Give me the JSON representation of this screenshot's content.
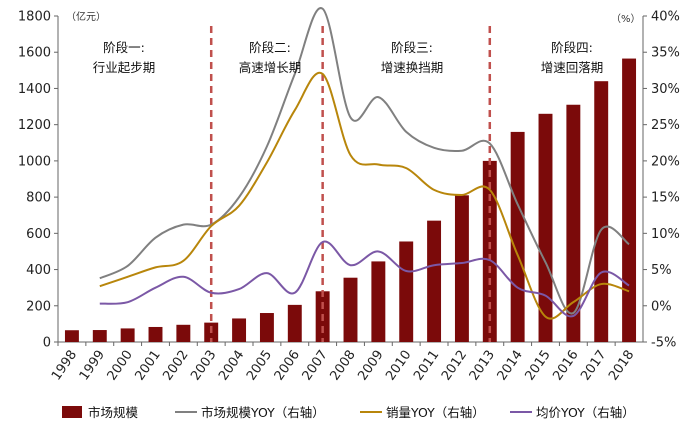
{
  "chart_data": {
    "type": "bar",
    "x": [
      "1998",
      "1999",
      "2000",
      "2001",
      "2002",
      "2003",
      "2004",
      "2005",
      "2006",
      "2007",
      "2008",
      "2009",
      "2010",
      "2011",
      "2012",
      "2013",
      "2014",
      "2015",
      "2016",
      "2017",
      "2018"
    ],
    "left_unit": "（亿元）",
    "right_unit": "（%）",
    "ylim_left": [
      0,
      1800
    ],
    "yticks_left": [
      0,
      200,
      400,
      600,
      800,
      1000,
      1200,
      1400,
      1600,
      1800
    ],
    "ylim_right": [
      -5,
      40
    ],
    "yticks_right": [
      "-5%",
      "0%",
      "5%",
      "10%",
      "15%",
      "20%",
      "25%",
      "30%",
      "35%",
      "40%"
    ],
    "colors": {
      "bars": "#7b0a0a",
      "market_yoy": "#808080",
      "sales_yoy": "#b8860b",
      "price_yoy": "#7b58a6",
      "stage_divider": "#c0504d"
    },
    "stage_dividers_at": [
      "2003",
      "2007",
      "2013"
    ],
    "stages": [
      {
        "line1": "阶段一:",
        "line2": "行业起步期"
      },
      {
        "line1": "阶段二:",
        "line2": "高速增长期"
      },
      {
        "line1": "阶段三:",
        "line2": "增速换挡期"
      },
      {
        "line1": "阶段四:",
        "line2": "增速回落期"
      }
    ],
    "series": [
      {
        "name": "市场规模",
        "kind": "bar",
        "axis": "left",
        "values": [
          65,
          66,
          75,
          83,
          95,
          107,
          130,
          160,
          205,
          280,
          355,
          445,
          555,
          670,
          810,
          1000,
          1160,
          1260,
          1310,
          1440,
          1565
        ]
      },
      {
        "name": "市场规模YOY（右轴）",
        "kind": "line",
        "axis": "right",
        "values": [
          null,
          3.8,
          5.5,
          9.4,
          11.2,
          11.2,
          15.0,
          22.0,
          32.0,
          41.0,
          26.0,
          28.8,
          24.0,
          21.8,
          21.4,
          22.4,
          14.0,
          6.0,
          -1.0,
          10.5,
          8.5
        ]
      },
      {
        "name": "销量YOY（右轴）",
        "kind": "line",
        "axis": "right",
        "values": [
          null,
          2.7,
          4.0,
          5.3,
          6.2,
          11.0,
          13.8,
          19.8,
          27.0,
          32.0,
          20.8,
          19.5,
          19.0,
          16.0,
          15.3,
          16.0,
          7.0,
          -1.5,
          0.5,
          3.0,
          2.0
        ]
      },
      {
        "name": "均价YOY（右轴）",
        "kind": "line",
        "axis": "right",
        "values": [
          null,
          0.3,
          0.5,
          2.5,
          4.0,
          1.8,
          2.3,
          4.5,
          1.8,
          8.8,
          5.6,
          7.5,
          4.8,
          5.6,
          5.9,
          6.3,
          2.5,
          1.4,
          -1.4,
          4.6,
          2.8
        ]
      }
    ]
  }
}
